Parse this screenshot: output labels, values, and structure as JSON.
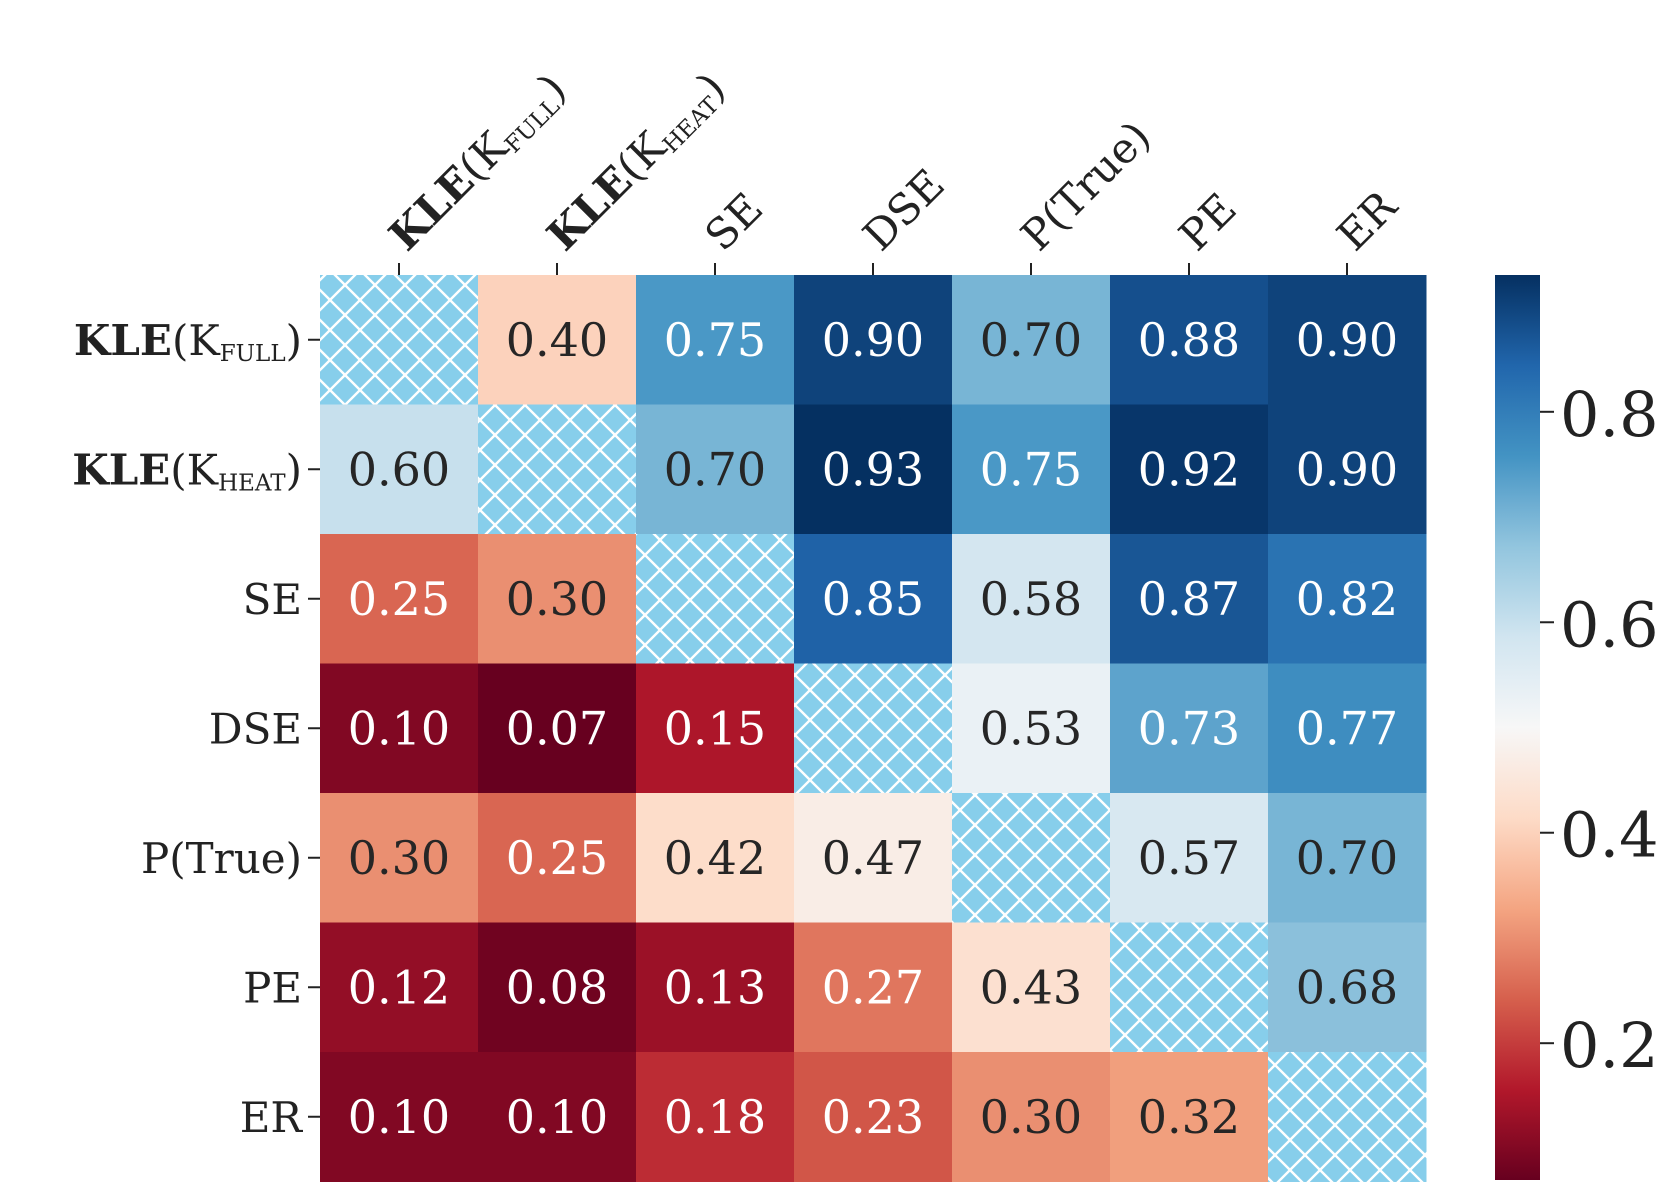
{
  "chart_data": {
    "type": "heatmap",
    "row_labels": [
      {
        "main": "KLE",
        "open": "(K",
        "sub": "FULL",
        "close": ")",
        "bold_main": true
      },
      {
        "main": "KLE",
        "open": "(K",
        "sub": "HEAT",
        "close": ")",
        "bold_main": true
      },
      {
        "main": "SE",
        "open": "",
        "sub": "",
        "close": "",
        "bold_main": false
      },
      {
        "main": "DSE",
        "open": "",
        "sub": "",
        "close": "",
        "bold_main": false
      },
      {
        "main": "P(True)",
        "open": "",
        "sub": "",
        "close": "",
        "bold_main": false
      },
      {
        "main": "PE",
        "open": "",
        "sub": "",
        "close": "",
        "bold_main": false
      },
      {
        "main": "ER",
        "open": "",
        "sub": "",
        "close": "",
        "bold_main": false
      }
    ],
    "col_labels": [
      {
        "main": "KLE",
        "open": "(K",
        "sub": "FULL",
        "close": ")",
        "bold_main": true
      },
      {
        "main": "KLE",
        "open": "(K",
        "sub": "HEAT",
        "close": ")",
        "bold_main": true
      },
      {
        "main": "SE",
        "open": "",
        "sub": "",
        "close": "",
        "bold_main": false
      },
      {
        "main": "DSE",
        "open": "",
        "sub": "",
        "close": "",
        "bold_main": false
      },
      {
        "main": "P(True)",
        "open": "",
        "sub": "",
        "close": "",
        "bold_main": false
      },
      {
        "main": "PE",
        "open": "",
        "sub": "",
        "close": "",
        "bold_main": false
      },
      {
        "main": "ER",
        "open": "",
        "sub": "",
        "close": "",
        "bold_main": false
      }
    ],
    "values": [
      [
        null,
        0.4,
        0.75,
        0.9,
        0.7,
        0.88,
        0.9
      ],
      [
        0.6,
        null,
        0.7,
        0.93,
        0.75,
        0.92,
        0.9
      ],
      [
        0.25,
        0.3,
        null,
        0.85,
        0.58,
        0.87,
        0.82
      ],
      [
        0.1,
        0.07,
        0.15,
        null,
        0.53,
        0.73,
        0.77
      ],
      [
        0.3,
        0.25,
        0.42,
        0.47,
        null,
        0.57,
        0.7
      ],
      [
        0.12,
        0.08,
        0.13,
        0.27,
        0.43,
        null,
        0.68
      ],
      [
        0.1,
        0.1,
        0.18,
        0.23,
        0.3,
        0.32,
        null
      ]
    ],
    "colormap": "RdBu",
    "vmin": 0.07,
    "vmax": 0.93,
    "diagonal": "hatched",
    "colorbar_ticks": [
      0.2,
      0.4,
      0.6,
      0.8
    ],
    "colorbar_tick_labels": [
      "0.2",
      "0.4",
      "0.6",
      "0.8"
    ]
  },
  "colors": {
    "diagonal_fill": "#87ceeb",
    "hatch": "#ffffff",
    "text_dark": "#262626",
    "text_light": "#ffffff"
  }
}
